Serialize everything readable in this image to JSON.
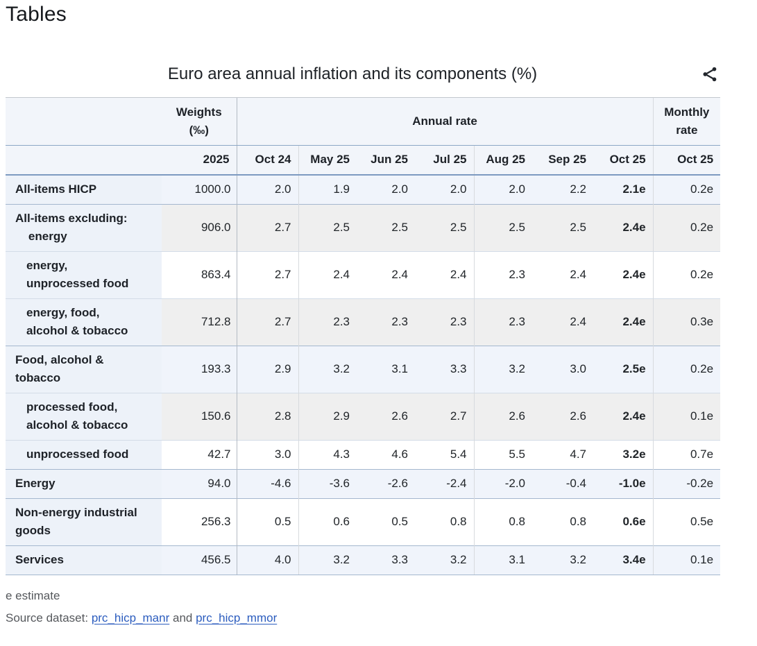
{
  "page": {
    "heading": "Tables"
  },
  "widget": {
    "title": "Euro area annual inflation and its components (%)",
    "share_icon": "share-icon"
  },
  "table": {
    "header": {
      "weights_label": "Weights\n(‰)",
      "weights_year": "2025",
      "annual_rate_label": "Annual rate",
      "monthly_rate_label": "Monthly\nrate",
      "months": [
        "Oct 24",
        "May 25",
        "Jun 25",
        "Jul 25",
        "Aug 25",
        "Sep 25",
        "Oct 25"
      ],
      "monthly_month": "Oct 25"
    },
    "rows": [
      {
        "label": "All-items HICP",
        "indent": false,
        "bg": "blue",
        "sep": "none",
        "weight": "1000.0",
        "annual": [
          "2.0",
          "1.9",
          "2.0",
          "2.0",
          "2.0",
          "2.2",
          "2.1e"
        ],
        "monthly": "0.2e"
      },
      {
        "label": "All-items excluding:\n    energy",
        "indent": false,
        "bg": "gray",
        "sep": "group",
        "weight": "906.0",
        "annual": [
          "2.7",
          "2.5",
          "2.5",
          "2.5",
          "2.5",
          "2.5",
          "2.4e"
        ],
        "monthly": "0.2e"
      },
      {
        "label": "energy,\nunprocessed food",
        "indent": true,
        "bg": "white",
        "sep": "light",
        "weight": "863.4",
        "annual": [
          "2.7",
          "2.4",
          "2.4",
          "2.4",
          "2.3",
          "2.4",
          "2.4e"
        ],
        "monthly": "0.2e"
      },
      {
        "label": "energy, food,\nalcohol & tobacco",
        "indent": true,
        "bg": "gray",
        "sep": "light",
        "weight": "712.8",
        "annual": [
          "2.7",
          "2.3",
          "2.3",
          "2.3",
          "2.3",
          "2.4",
          "2.4e"
        ],
        "monthly": "0.3e"
      },
      {
        "label": "Food, alcohol &\ntobacco",
        "indent": false,
        "bg": "blue",
        "sep": "group",
        "weight": "193.3",
        "annual": [
          "2.9",
          "3.2",
          "3.1",
          "3.3",
          "3.2",
          "3.0",
          "2.5e"
        ],
        "monthly": "0.2e"
      },
      {
        "label": "processed food,\nalcohol & tobacco",
        "indent": true,
        "bg": "gray",
        "sep": "light",
        "weight": "150.6",
        "annual": [
          "2.8",
          "2.9",
          "2.6",
          "2.7",
          "2.6",
          "2.6",
          "2.4e"
        ],
        "monthly": "0.1e"
      },
      {
        "label": "unprocessed food",
        "indent": true,
        "bg": "white",
        "sep": "light",
        "weight": "42.7",
        "annual": [
          "3.0",
          "4.3",
          "4.6",
          "5.4",
          "5.5",
          "4.7",
          "3.2e"
        ],
        "monthly": "0.7e"
      },
      {
        "label": "Energy",
        "indent": false,
        "bg": "blue",
        "sep": "group",
        "weight": "94.0",
        "annual": [
          "-4.6",
          "-3.6",
          "-2.6",
          "-2.4",
          "-2.0",
          "-0.4",
          "-1.0e"
        ],
        "monthly": "-0.2e"
      },
      {
        "label": "Non-energy industrial\ngoods",
        "indent": false,
        "bg": "white",
        "sep": "group",
        "weight": "256.3",
        "annual": [
          "0.5",
          "0.6",
          "0.5",
          "0.8",
          "0.8",
          "0.8",
          "0.6e"
        ],
        "monthly": "0.5e"
      },
      {
        "label": "Services",
        "indent": false,
        "bg": "blue",
        "sep": "group",
        "weight": "456.5",
        "annual": [
          "4.0",
          "3.2",
          "3.3",
          "3.2",
          "3.1",
          "3.2",
          "3.4e"
        ],
        "monthly": "0.1e"
      }
    ]
  },
  "footer": {
    "note": "e estimate",
    "source_prefix": "Source dataset: ",
    "link1": "prc_hicp_manr",
    "conjunction": " and ",
    "link2": "prc_hicp_mmor"
  },
  "colors": {
    "link_blue": "#2b5cbe",
    "row_highlight_blue": "#f0f4fb",
    "row_stripe_gray": "#efefef",
    "label_column_blue": "#edf2f9",
    "header_background": "#f2f5fa",
    "header_border_blue": "#7d9ac0"
  }
}
